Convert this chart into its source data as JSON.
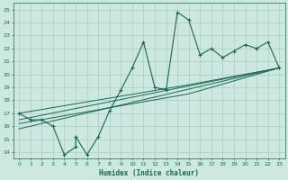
{
  "xlabel": "Humidex (Indice chaleur)",
  "bg_color": "#cce8e0",
  "grid_color": "#aaccc4",
  "line_color": "#1a6655",
  "xlim": [
    -0.5,
    23.5
  ],
  "ylim": [
    13.5,
    25.5
  ],
  "xticks": [
    0,
    1,
    2,
    3,
    4,
    5,
    6,
    7,
    8,
    9,
    10,
    11,
    12,
    13,
    14,
    15,
    16,
    17,
    18,
    19,
    20,
    21,
    22,
    23
  ],
  "yticks": [
    14,
    15,
    16,
    17,
    18,
    19,
    20,
    21,
    22,
    23,
    24,
    25
  ],
  "main_x": [
    0,
    1,
    2,
    3,
    4,
    5,
    5,
    6,
    7,
    8,
    9,
    10,
    11,
    12,
    13,
    14,
    15,
    16,
    17,
    18,
    19,
    20,
    21,
    22,
    23
  ],
  "main_y": [
    17,
    16.5,
    16.5,
    16,
    13.8,
    14.4,
    15.2,
    13.8,
    15.2,
    17.2,
    18.8,
    20.5,
    22.5,
    19.0,
    18.8,
    24.8,
    24.2,
    21.5,
    22.0,
    21.3,
    21.8,
    22.3,
    22.0,
    22.5,
    20.5
  ],
  "trend1_x": [
    0,
    23
  ],
  "trend1_y": [
    16.5,
    20.5
  ],
  "trend2_x": [
    0,
    23
  ],
  "trend2_y": [
    15.8,
    20.5
  ],
  "trend3_x": [
    0,
    15,
    23
  ],
  "trend3_y": [
    17.0,
    19.2,
    20.5
  ],
  "trend4_x": [
    0,
    15,
    23
  ],
  "trend4_y": [
    16.2,
    18.5,
    20.5
  ]
}
